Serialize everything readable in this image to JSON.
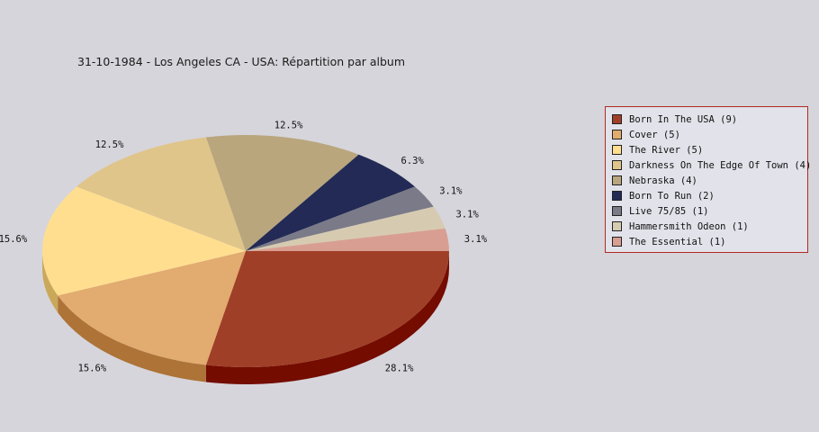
{
  "title": "31-10-1984 - Los Angeles CA - USA:  Répartition par album",
  "chart_data": {
    "type": "pie",
    "title": "31-10-1984 - Los Angeles CA - USA:  Répartition par album",
    "slices": [
      {
        "label": "Born In The USA (9)",
        "value": 9,
        "percent": "28.1%",
        "color": "#a03f27",
        "side_color": "#740c00"
      },
      {
        "label": "Cover (5)",
        "value": 5,
        "percent": "15.6%",
        "color": "#e2ab6f",
        "side_color": "#ad7337"
      },
      {
        "label": "The River (5)",
        "value": 5,
        "percent": "15.6%",
        "color": "#ffde90",
        "side_color": "#c9a85a"
      },
      {
        "label": "Darkness On The Edge Of Town (4)",
        "value": 4,
        "percent": "12.5%",
        "color": "#dfc58a",
        "side_color": "#a88f54"
      },
      {
        "label": "Nebraska (4)",
        "value": 4,
        "percent": "12.5%",
        "color": "#b9a67d",
        "side_color": "#877349"
      },
      {
        "label": "Born To Run (2)",
        "value": 2,
        "percent": "6.3%",
        "color": "#222a55",
        "side_color": "#0d1230"
      },
      {
        "label": "Live 75/85 (1)",
        "value": 1,
        "percent": "3.1%",
        "color": "#7b7a88",
        "side_color": "#4c4b58"
      },
      {
        "label": "Hammersmith Odeon  (1)",
        "value": 1,
        "percent": "3.1%",
        "color": "#d6cbb1",
        "side_color": "#a69b80"
      },
      {
        "label": "The Essential (1)",
        "value": 1,
        "percent": "3.1%",
        "color": "#d99e92",
        "side_color": "#a76c60"
      }
    ],
    "legend_position": "right",
    "style": "3d"
  }
}
